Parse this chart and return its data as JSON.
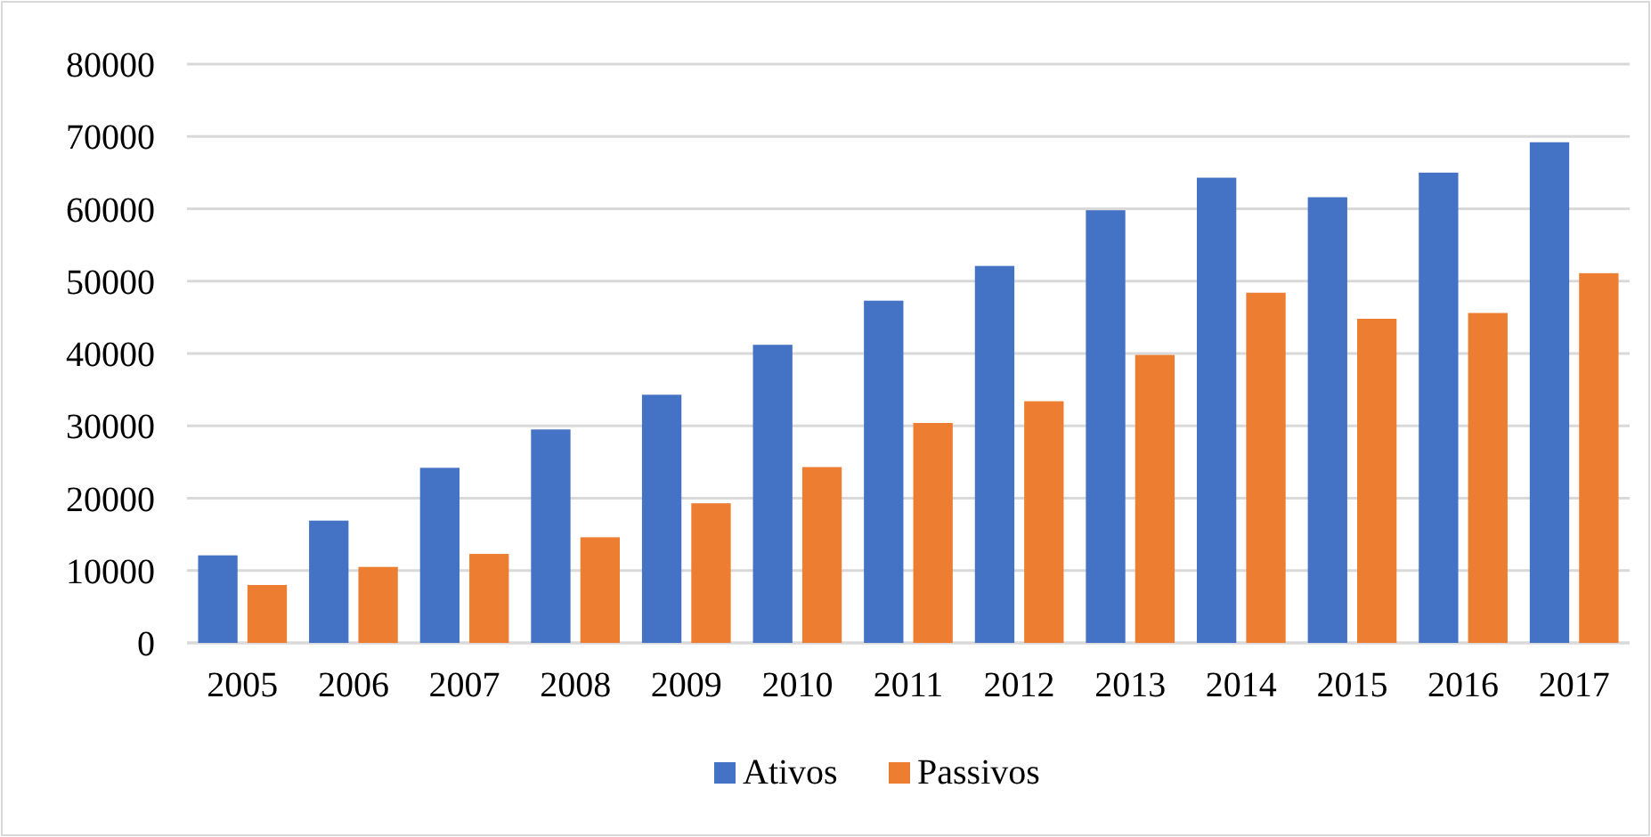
{
  "chart_data": {
    "type": "bar",
    "categories": [
      "2005",
      "2006",
      "2007",
      "2008",
      "2009",
      "2010",
      "2011",
      "2012",
      "2013",
      "2014",
      "2015",
      "2016",
      "2017"
    ],
    "series": [
      {
        "name": "Ativos",
        "color": "#4472c4",
        "values": [
          12100,
          16900,
          24200,
          29500,
          34300,
          41200,
          47300,
          52100,
          59800,
          64300,
          61600,
          65000,
          69200
        ]
      },
      {
        "name": "Passivos",
        "color": "#ed7d31",
        "values": [
          8000,
          10500,
          12300,
          14600,
          19300,
          24300,
          30400,
          33400,
          39800,
          48400,
          44800,
          45600,
          51100
        ]
      }
    ],
    "ylim": [
      0,
      80000
    ],
    "yticks": [
      0,
      10000,
      20000,
      30000,
      40000,
      50000,
      60000,
      70000,
      80000
    ],
    "grid": "y",
    "legend": "bottom"
  }
}
